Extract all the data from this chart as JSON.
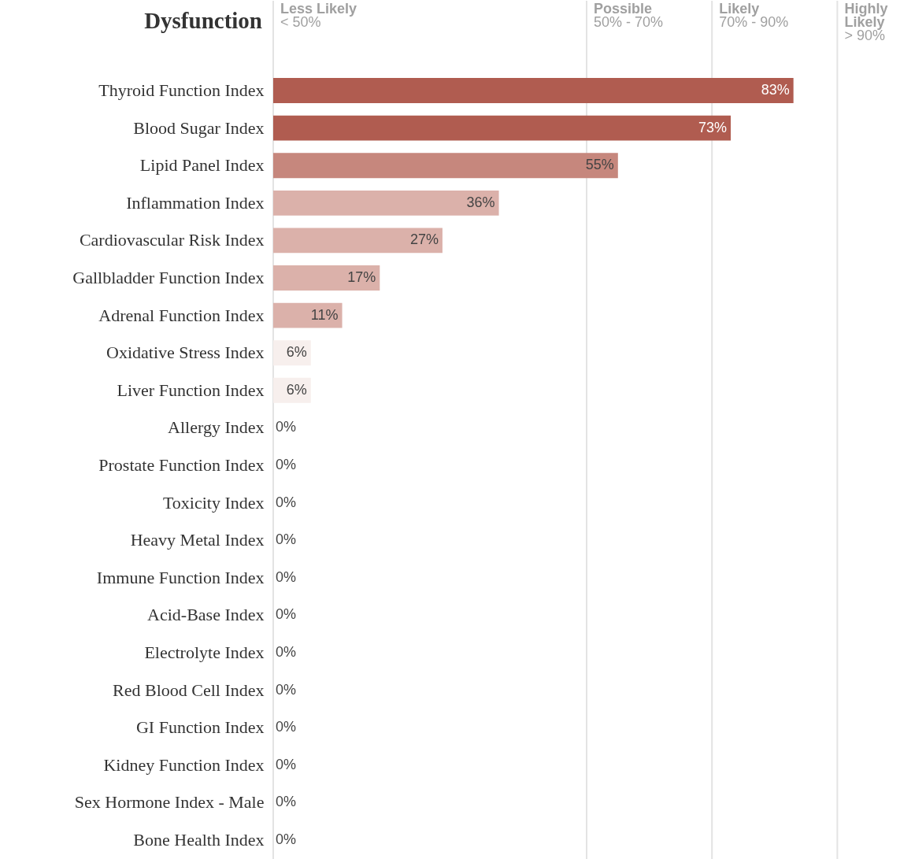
{
  "chart_data": {
    "type": "bar",
    "orientation": "horizontal",
    "title": "Dysfunction",
    "categories": [
      "Thyroid Function Index",
      "Blood Sugar Index",
      "Lipid Panel Index",
      "Inflammation Index",
      "Cardiovascular Risk Index",
      "Gallbladder Function Index",
      "Adrenal Function Index",
      "Oxidative Stress Index",
      "Liver Function Index",
      "Allergy Index",
      "Prostate Function Index",
      "Toxicity Index",
      "Heavy Metal Index",
      "Immune Function Index",
      "Acid-Base Index",
      "Electrolyte Index",
      "Red Blood Cell Index",
      "GI Function Index",
      "Kidney Function Index",
      "Sex Hormone Index - Male",
      "Bone Health Index"
    ],
    "values": [
      83,
      73,
      55,
      36,
      27,
      17,
      11,
      6,
      6,
      0,
      0,
      0,
      0,
      0,
      0,
      0,
      0,
      0,
      0,
      0,
      0
    ],
    "colors": [
      "#b05c50",
      "#b05c50",
      "#c6877d",
      "#dbb1aa",
      "#dbb1aa",
      "#dbb1aa",
      "#dbb1aa",
      "#f7efed",
      "#f7efed",
      "#dbb1aa",
      "#dbb1aa",
      "#dbb1aa",
      "#dbb1aa",
      "#dbb1aa",
      "#dbb1aa",
      "#dbb1aa",
      "#dbb1aa",
      "#dbb1aa",
      "#dbb1aa",
      "#dbb1aa",
      "#dbb1aa"
    ],
    "value_labels": [
      "83%",
      "73%",
      "55%",
      "36%",
      "27%",
      "17%",
      "11%",
      "6%",
      "6%",
      "0%",
      "0%",
      "0%",
      "0%",
      "0%",
      "0%",
      "0%",
      "0%",
      "0%",
      "0%",
      "0%",
      "0%"
    ],
    "xlim": [
      0,
      100
    ],
    "tick_labels": "y",
    "grid": false,
    "ref_lines": [
      {
        "axis": "x",
        "value": 0,
        "label": "Less Likely\n< 50%",
        "color": "#e3e3e3"
      },
      {
        "axis": "x",
        "value": 50,
        "label": "Possible\n50% - 70%",
        "color": "#e3e3e3"
      },
      {
        "axis": "x",
        "value": 70,
        "label": "Likely\n70% - 90%",
        "color": "#e3e3e3"
      },
      {
        "axis": "x",
        "value": 90,
        "label": "Highly\nLikely\n> 90%",
        "color": "#e3e3e3"
      }
    ]
  }
}
